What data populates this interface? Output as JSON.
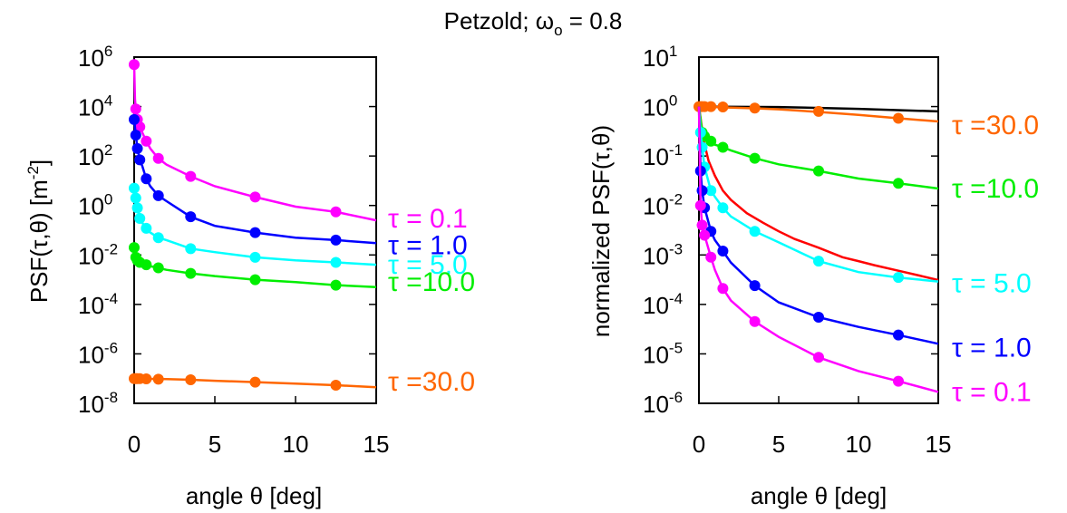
{
  "figure": {
    "title": "Petzold; ω",
    "title_sub": "o",
    "title_tail": " = 0.8"
  },
  "chart_data": [
    {
      "type": "line",
      "xlabel": "angle θ  [deg]",
      "ylabel": "PSF(τ,θ)  [m",
      "ylabel_exp": "-2",
      "ylabel_tail": "]",
      "xlim": [
        0,
        15
      ],
      "ylim": [
        1e-08,
        1000000.0
      ],
      "yscale": "log",
      "xticks": [
        0,
        5,
        10,
        15
      ],
      "yticks": [
        {
          "base": "10",
          "exp": "6"
        },
        {
          "base": "10",
          "exp": "4"
        },
        {
          "base": "10",
          "exp": "2"
        },
        {
          "base": "10",
          "exp": "0"
        },
        {
          "base": "10",
          "exp": "-2"
        },
        {
          "base": "10",
          "exp": "-4"
        },
        {
          "base": "10",
          "exp": "-6"
        },
        {
          "base": "10",
          "exp": "-8"
        }
      ],
      "ytick_values": [
        1000000.0,
        10000.0,
        100.0,
        1,
        0.01,
        0.0001,
        1e-06,
        1e-08
      ],
      "series": [
        {
          "name": "τ = 0.1",
          "color": "#ff00ff",
          "x": [
            0,
            0.05,
            0.1,
            0.2,
            0.35,
            0.5,
            0.75,
            1.0,
            1.5,
            2.0,
            3.5,
            5,
            7.5,
            10,
            12.5,
            15
          ],
          "y": [
            500000.0,
            20000.0,
            8000.0,
            3000.0,
            1500.0,
            900,
            400,
            200,
            80,
            45,
            15,
            6,
            2.2,
            0.9,
            0.55,
            0.25
          ],
          "markers_x": [
            0,
            0.1,
            0.2,
            0.35,
            0.75,
            1.5,
            3.5,
            7.5,
            12.5
          ],
          "markers_y": [
            500000.0,
            8000.0,
            3000.0,
            1500.0,
            400,
            80,
            15,
            2.2,
            0.55
          ]
        },
        {
          "name": "τ = 1.0",
          "color": "#0000ff",
          "x": [
            0,
            0.1,
            0.2,
            0.35,
            0.5,
            0.75,
            1.0,
            1.5,
            2.0,
            3.5,
            5,
            7.5,
            10,
            12.5,
            15
          ],
          "y": [
            3000.0,
            700,
            200,
            70,
            40,
            12,
            6,
            2.5,
            1.5,
            0.35,
            0.15,
            0.08,
            0.05,
            0.04,
            0.03
          ],
          "markers_x": [
            0,
            0.1,
            0.2,
            0.35,
            0.75,
            1.5,
            3.5,
            7.5,
            12.5
          ],
          "markers_y": [
            3000.0,
            700,
            200,
            70,
            12,
            2.5,
            0.35,
            0.08,
            0.04
          ]
        },
        {
          "name": "τ = 5.0",
          "color": "#00ffff",
          "x": [
            0,
            0.1,
            0.2,
            0.35,
            0.5,
            0.75,
            1.0,
            1.5,
            2.0,
            3.5,
            5,
            7.5,
            10,
            12.5,
            15
          ],
          "y": [
            5,
            2,
            0.8,
            0.3,
            0.2,
            0.12,
            0.08,
            0.05,
            0.04,
            0.018,
            0.013,
            0.008,
            0.006,
            0.005,
            0.004
          ],
          "markers_x": [
            0,
            0.1,
            0.2,
            0.35,
            0.75,
            1.5,
            3.5,
            7.5,
            12.5
          ],
          "markers_y": [
            5,
            2,
            0.8,
            0.3,
            0.12,
            0.05,
            0.018,
            0.008,
            0.005
          ]
        },
        {
          "name": "τ =10.0",
          "color": "#00ee00",
          "x": [
            0,
            0.1,
            0.2,
            0.35,
            0.5,
            0.75,
            1.0,
            1.5,
            2.0,
            3.5,
            5,
            7.5,
            10,
            12.5,
            15
          ],
          "y": [
            0.02,
            0.008,
            0.006,
            0.005,
            0.0045,
            0.004,
            0.0035,
            0.003,
            0.0025,
            0.0018,
            0.0014,
            0.001,
            0.0008,
            0.0006,
            0.0005
          ],
          "markers_x": [
            0,
            0.1,
            0.2,
            0.35,
            0.75,
            1.5,
            3.5,
            7.5,
            12.5
          ],
          "markers_y": [
            0.02,
            0.008,
            0.006,
            0.005,
            0.004,
            0.003,
            0.0018,
            0.001,
            0.0006
          ]
        },
        {
          "name": "τ =30.0",
          "color": "#ff6600",
          "x": [
            0,
            0.5,
            1,
            2,
            3.5,
            5,
            7.5,
            10,
            12.5,
            15
          ],
          "y": [
            1e-07,
            1e-07,
            9.8e-08,
            9.5e-08,
            9e-08,
            8.2e-08,
            7.2e-08,
            6.3e-08,
            5.4e-08,
            4.5e-08
          ],
          "markers_x": [
            0,
            0.1,
            0.2,
            0.35,
            0.75,
            1.5,
            3.5,
            7.5,
            12.5
          ],
          "markers_y": [
            1e-07,
            1e-07,
            1e-07,
            1e-07,
            9.8e-08,
            9.5e-08,
            9e-08,
            7.2e-08,
            5.4e-08
          ]
        }
      ]
    },
    {
      "type": "line",
      "xlabel": "angle θ  [deg]",
      "ylabel": "normalized PSF(τ,θ)",
      "xlim": [
        0,
        15
      ],
      "ylim": [
        1e-06,
        10
      ],
      "yscale": "log",
      "xticks": [
        0,
        5,
        10,
        15
      ],
      "yticks": [
        {
          "base": "10",
          "exp": "1"
        },
        {
          "base": "10",
          "exp": "0"
        },
        {
          "base": "10",
          "exp": "-1"
        },
        {
          "base": "10",
          "exp": "-2"
        },
        {
          "base": "10",
          "exp": "-3"
        },
        {
          "base": "10",
          "exp": "-4"
        },
        {
          "base": "10",
          "exp": "-5"
        },
        {
          "base": "10",
          "exp": "-6"
        }
      ],
      "ytick_values": [
        10,
        1,
        0.1,
        0.01,
        0.001,
        0.0001,
        1e-05,
        1e-06
      ],
      "series": [
        {
          "color": "#000000",
          "x": [
            0,
            5,
            10,
            15
          ],
          "y": [
            1.0,
            0.98,
            0.9,
            0.8
          ]
        },
        {
          "color": "#ff0000",
          "x": [
            0,
            0.3,
            0.6,
            1.0,
            1.5,
            2.0,
            3.0,
            4.0,
            5.0,
            6.0,
            7.5,
            9,
            10,
            11,
            12.5,
            14,
            15
          ],
          "y": [
            1.0,
            0.2,
            0.08,
            0.04,
            0.02,
            0.013,
            0.007,
            0.0045,
            0.003,
            0.0021,
            0.0014,
            0.0009,
            0.00075,
            0.00062,
            0.00048,
            0.00037,
            0.00031
          ]
        },
        {
          "name": "τ =30.0",
          "color": "#ff6600",
          "x": [
            0,
            0.5,
            1,
            2,
            3.5,
            5,
            7.5,
            10,
            12.5,
            15
          ],
          "y": [
            1.0,
            1.0,
            0.98,
            0.95,
            0.92,
            0.88,
            0.78,
            0.68,
            0.58,
            0.5
          ],
          "markers_x": [
            0,
            0.1,
            0.2,
            0.35,
            0.75,
            1.5,
            3.5,
            7.5,
            12.5
          ],
          "markers_y": [
            1.0,
            1.0,
            1.0,
            1.0,
            1.0,
            0.98,
            0.93,
            0.8,
            0.58
          ]
        },
        {
          "name": "τ =10.0",
          "color": "#00ee00",
          "x": [
            0,
            0.2,
            0.35,
            0.75,
            1.0,
            1.5,
            2.0,
            3.5,
            5,
            7.5,
            10,
            12.5,
            15
          ],
          "y": [
            1.0,
            0.3,
            0.25,
            0.2,
            0.17,
            0.15,
            0.13,
            0.09,
            0.068,
            0.05,
            0.035,
            0.028,
            0.022
          ],
          "markers_x": [
            0.2,
            0.35,
            0.75,
            1.5,
            3.5,
            7.5,
            12.5
          ],
          "markers_y": [
            0.3,
            0.25,
            0.2,
            0.15,
            0.09,
            0.05,
            0.028
          ]
        },
        {
          "name": "τ = 5.0",
          "color": "#00ffff",
          "x": [
            0,
            0.1,
            0.2,
            0.35,
            0.75,
            1.0,
            1.5,
            2.0,
            3.5,
            5,
            7.5,
            10,
            12.5,
            15
          ],
          "y": [
            1.0,
            0.3,
            0.15,
            0.06,
            0.02,
            0.015,
            0.009,
            0.006,
            0.003,
            0.0018,
            0.00075,
            0.00045,
            0.00035,
            0.00029
          ],
          "markers_x": [
            0.1,
            0.2,
            0.35,
            0.75,
            1.5,
            3.5,
            7.5,
            12.5
          ],
          "markers_y": [
            0.3,
            0.15,
            0.06,
            0.02,
            0.009,
            0.003,
            0.00075,
            0.00035
          ]
        },
        {
          "name": "τ = 1.0",
          "color": "#0000ff",
          "x": [
            0,
            0.1,
            0.2,
            0.35,
            0.75,
            1.0,
            1.5,
            2.0,
            3.5,
            5,
            7.5,
            10,
            12.5,
            15
          ],
          "y": [
            1.0,
            0.05,
            0.02,
            0.009,
            0.003,
            0.002,
            0.0012,
            0.0007,
            0.00024,
            0.00011,
            5.5e-05,
            3.5e-05,
            2.4e-05,
            1.6e-05
          ],
          "markers_x": [
            0.1,
            0.2,
            0.35,
            0.75,
            1.5,
            3.5,
            7.5,
            12.5
          ],
          "markers_y": [
            0.05,
            0.02,
            0.009,
            0.003,
            0.0012,
            0.00024,
            5.5e-05,
            2.4e-05
          ]
        },
        {
          "name": "τ = 0.1",
          "color": "#ff00ff",
          "x": [
            0,
            0.1,
            0.2,
            0.35,
            0.75,
            1.0,
            1.5,
            2.0,
            3.5,
            5,
            7.5,
            10,
            12.5,
            15
          ],
          "y": [
            1.0,
            0.01,
            0.004,
            0.0025,
            0.0009,
            0.0005,
            0.00021,
            0.00012,
            4.5e-05,
            2.2e-05,
            8.5e-06,
            4.5e-06,
            2.8e-06,
            1.7e-06
          ],
          "markers_x": [
            0.1,
            0.2,
            0.35,
            0.75,
            1.5,
            3.5,
            7.5,
            12.5
          ],
          "markers_y": [
            0.01,
            0.004,
            0.0025,
            0.0009,
            0.00021,
            4.5e-05,
            8.5e-06,
            2.8e-06
          ]
        }
      ]
    }
  ]
}
